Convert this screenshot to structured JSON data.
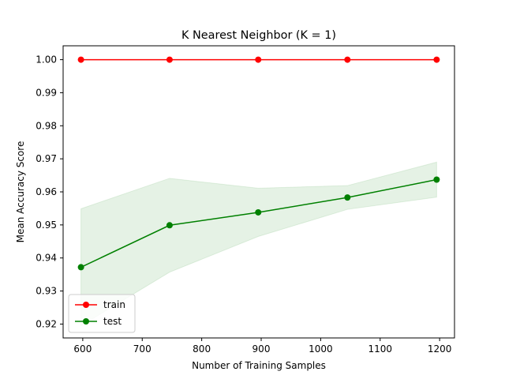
{
  "chart_data": {
    "type": "line",
    "title": "K Nearest Neighbor (K = 1)",
    "xlabel": "Number of Training Samples",
    "ylabel": "Mean Accuracy Score",
    "x": [
      597,
      746,
      895,
      1045,
      1195
    ],
    "xlim": [
      567,
      1225
    ],
    "ylim": [
      0.9158,
      1.0042
    ],
    "xticks": [
      600,
      700,
      800,
      900,
      1000,
      1100,
      1200
    ],
    "yticks": [
      0.92,
      0.93,
      0.94,
      0.95,
      0.96,
      0.97,
      0.98,
      0.99,
      1.0
    ],
    "ytick_labels": [
      "0.92",
      "0.93",
      "0.94",
      "0.95",
      "0.96",
      "0.97",
      "0.98",
      "0.99",
      "1.00"
    ],
    "grid": false,
    "legend_position": "lower-left",
    "series": [
      {
        "name": "train",
        "color": "#ff0000",
        "marker": "circle",
        "values": [
          1.0,
          1.0,
          1.0,
          1.0,
          1.0
        ]
      },
      {
        "name": "test",
        "color": "#008000",
        "marker": "circle",
        "values": [
          0.9372,
          0.9499,
          0.9538,
          0.9583,
          0.9637
        ],
        "band_lower": [
          0.9195,
          0.9357,
          0.9465,
          0.9547,
          0.9584
        ],
        "band_upper": [
          0.9549,
          0.9641,
          0.9611,
          0.9619,
          0.969
        ],
        "band_color": "#008000",
        "band_opacity": 0.1
      }
    ]
  }
}
